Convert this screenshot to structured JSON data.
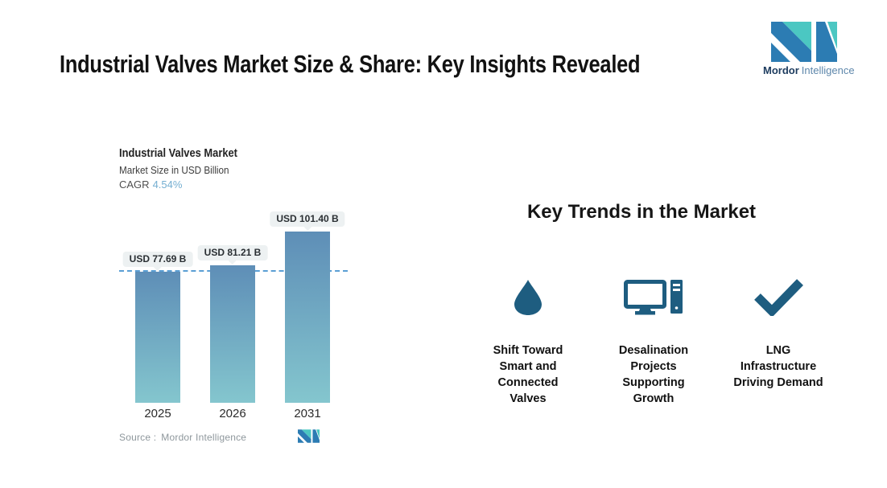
{
  "title": "Industrial Valves Market Size & Share: Key Insights Revealed",
  "brand": {
    "name_bold": "Mordor",
    "name_light": "Intelligence",
    "colors": {
      "teal": "#4BC7C2",
      "blue": "#2C7CB3",
      "name_bold_color": "#1C3B5E",
      "name_light_color": "#5E87AB"
    }
  },
  "chart": {
    "title": "Industrial Valves Market",
    "subtitle": "Market Size in USD Billion",
    "cagr_label": "CAGR",
    "cagr_value": "4.54%",
    "cagr_value_color": "#74AED1",
    "source_label": "Source :",
    "source_value": "Mordor Intelligence"
  },
  "chart_data": {
    "type": "bar",
    "title": "Industrial Valves Market",
    "ylabel": "Market Size in USD Billion",
    "unit": "USD Billion",
    "cagr_percent": 4.54,
    "categories": [
      "2025",
      "2026",
      "2031"
    ],
    "values": [
      77.69,
      81.21,
      101.4
    ],
    "value_labels": [
      "USD 77.69 B",
      "USD 81.21 B",
      "USD 101.40 B"
    ],
    "ylim": [
      0,
      110
    ],
    "grid": false,
    "legend": "none",
    "reference_line": {
      "value": 77.69,
      "style": "dashed",
      "color": "#5B9FD4"
    },
    "bar_gradient_top": "#5E8EB7",
    "bar_gradient_bottom": "#84C6CE"
  },
  "trends": {
    "heading": "Key Trends in the Market",
    "icon_color": "#1E5D80",
    "items": [
      {
        "icon": "water-drop-icon",
        "label": "Shift Toward\nSmart and\nConnected\nValves"
      },
      {
        "icon": "desktop-computer-icon",
        "label": "Desalination\nProjects\nSupporting\nGrowth"
      },
      {
        "icon": "checkmark-icon",
        "label": "LNG\nInfrastructure\nDriving Demand"
      }
    ]
  }
}
